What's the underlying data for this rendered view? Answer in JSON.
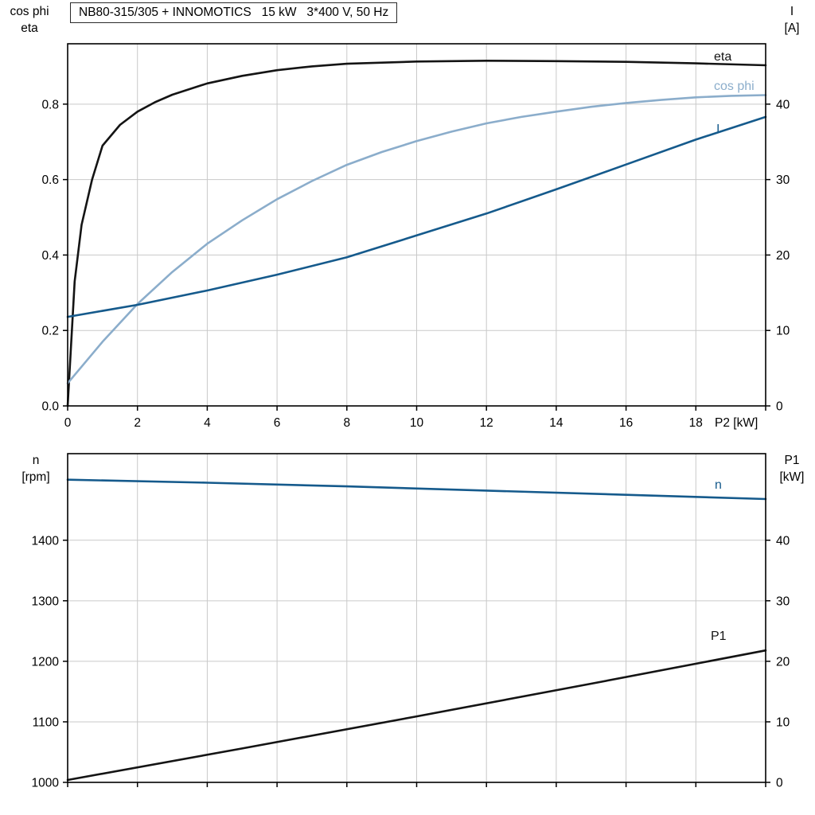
{
  "title": "NB80-315/305 + INNOMOTICS   15 kW   3*400 V, 50 Hz",
  "colors": {
    "black_curve": "#141414",
    "cos_phi_curve": "#8badcb",
    "dark_blue_curve": "#155a8c",
    "grid": "#c9c9c9"
  },
  "axes": {
    "top_left_line1": "cos phi",
    "top_left_line2": "eta",
    "top_right_line1": "I",
    "top_right_line2": "[A]",
    "bottom_left_line1": "n",
    "bottom_left_line2": "[rpm]",
    "bottom_right_line1": "P1",
    "bottom_right_line2": "[kW]"
  },
  "chart_data": [
    {
      "type": "line",
      "title": "NB80-315/305 + INNOMOTICS   15 kW   3*400 V, 50 Hz",
      "x_axis": {
        "label": "P2 [kW]",
        "range": [
          0,
          20
        ],
        "ticks": [
          0,
          2,
          4,
          6,
          8,
          10,
          12,
          14,
          16,
          18,
          20
        ],
        "tick_labels": [
          "0",
          "2",
          "4",
          "6",
          "8",
          "10",
          "12",
          "14",
          "16",
          "18",
          ""
        ],
        "grid": [
          2,
          4,
          6,
          8,
          10,
          12,
          14,
          16,
          18
        ]
      },
      "y_left": {
        "label": "cos phi / eta",
        "range": [
          0,
          0.96
        ],
        "ticks": [
          0.0,
          0.2,
          0.4,
          0.6,
          0.8
        ],
        "tick_labels": [
          "0.0",
          "0.2",
          "0.4",
          "0.6",
          "0.8"
        ],
        "grid": [
          0.2,
          0.4,
          0.6,
          0.8
        ]
      },
      "y_right": {
        "label": "I [A]",
        "range": [
          0,
          48
        ],
        "ticks": [
          0,
          10,
          20,
          30,
          40
        ],
        "tick_labels": [
          "0",
          "10",
          "20",
          "30",
          "40"
        ]
      },
      "series": [
        {
          "name": "eta",
          "axis": "left",
          "color": "#141414",
          "x": [
            0,
            0.2,
            0.4,
            0.7,
            1,
            1.5,
            2,
            2.5,
            3,
            4,
            5,
            6,
            7,
            8,
            10,
            12,
            14,
            16,
            18,
            20
          ],
          "y": [
            0,
            0.33,
            0.48,
            0.6,
            0.69,
            0.745,
            0.78,
            0.805,
            0.825,
            0.855,
            0.875,
            0.89,
            0.9,
            0.907,
            0.913,
            0.915,
            0.914,
            0.912,
            0.908,
            0.903
          ]
        },
        {
          "name": "cos phi",
          "axis": "left",
          "color": "#8badcb",
          "x": [
            0,
            1,
            2,
            3,
            4,
            5,
            6,
            7,
            8,
            9,
            10,
            11,
            12,
            13,
            14,
            15,
            16,
            17,
            18,
            19,
            20
          ],
          "y": [
            0.06,
            0.17,
            0.27,
            0.355,
            0.43,
            0.492,
            0.548,
            0.596,
            0.639,
            0.673,
            0.702,
            0.727,
            0.749,
            0.766,
            0.78,
            0.793,
            0.803,
            0.811,
            0.818,
            0.822,
            0.824
          ]
        },
        {
          "name": "I",
          "axis": "right",
          "color": "#155a8c",
          "x": [
            0,
            2,
            4,
            6,
            8,
            10,
            12,
            14,
            16,
            18,
            20
          ],
          "y": [
            11.8,
            13.4,
            15.3,
            17.4,
            19.7,
            22.6,
            25.5,
            28.7,
            32.0,
            35.3,
            38.3
          ]
        }
      ]
    },
    {
      "type": "line",
      "title": "",
      "x_axis": {
        "label": "",
        "range": [
          0,
          20
        ],
        "ticks": [
          0,
          2,
          4,
          6,
          8,
          10,
          12,
          14,
          16,
          18,
          20
        ],
        "tick_labels": [
          "",
          "",
          "",
          "",
          "",
          "",
          "",
          "",
          "",
          "",
          ""
        ],
        "grid": [
          2,
          4,
          6,
          8,
          10,
          12,
          14,
          16,
          18
        ]
      },
      "y_left": {
        "label": "n [rpm]",
        "range": [
          1000,
          1543
        ],
        "ticks": [
          1000,
          1100,
          1200,
          1300,
          1400
        ],
        "tick_labels": [
          "1000",
          "1100",
          "1200",
          "1300",
          "1400"
        ],
        "grid": [
          1100,
          1200,
          1300,
          1400
        ]
      },
      "y_right": {
        "label": "P1 [kW]",
        "range": [
          0,
          54.3
        ],
        "ticks": [
          0,
          10,
          20,
          30,
          40
        ],
        "tick_labels": [
          "0",
          "10",
          "20",
          "30",
          "40"
        ]
      },
      "series": [
        {
          "name": "n",
          "axis": "left",
          "color": "#155a8c",
          "x": [
            0,
            4,
            8,
            12,
            16,
            20
          ],
          "y": [
            1500,
            1495,
            1489,
            1482,
            1475,
            1468
          ]
        },
        {
          "name": "P1",
          "axis": "right",
          "color": "#141414",
          "x": [
            0,
            5,
            10,
            15,
            20
          ],
          "y": [
            0.4,
            5.6,
            10.9,
            16.3,
            21.8
          ]
        }
      ]
    }
  ]
}
